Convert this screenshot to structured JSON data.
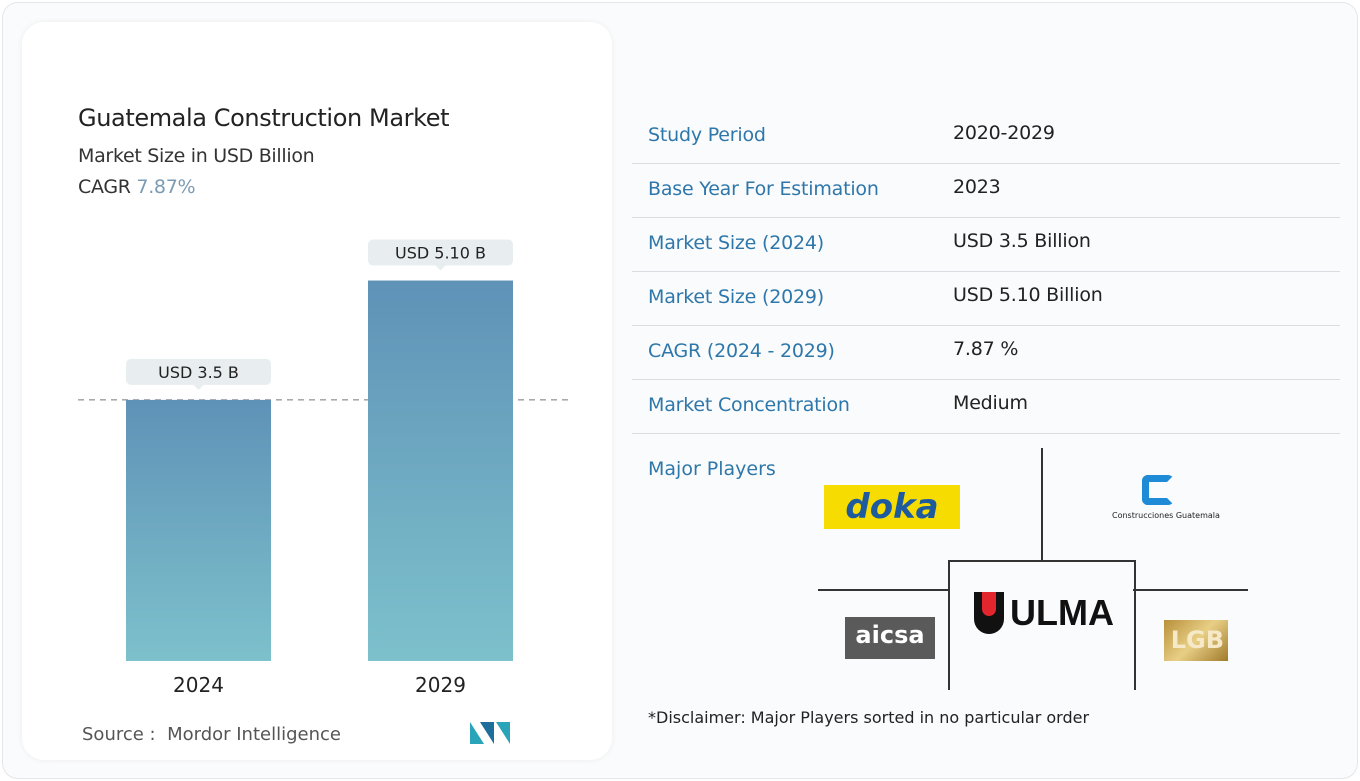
{
  "header": {
    "title": "Guatemala Construction Market",
    "subtitle": "Market Size in USD Billion",
    "cagr_label": "CAGR",
    "cagr_value": "7.87%"
  },
  "chart_data": {
    "type": "bar",
    "categories": [
      "2024",
      "2029"
    ],
    "values": [
      3.5,
      5.1
    ],
    "data_labels": [
      "USD 3.5 B",
      "USD 5.10 B"
    ],
    "title": "Guatemala Construction Market",
    "ylabel": "Market Size in USD Billion",
    "reference_line": 3.5,
    "colors": {
      "bar_top": "#5f92b7",
      "bar_bottom": "#7dc1cc"
    }
  },
  "source": {
    "label": "Source :",
    "value": "Mordor Intelligence"
  },
  "table": [
    {
      "key": "Study Period",
      "value": "2020-2029"
    },
    {
      "key": "Base Year For Estimation",
      "value": "2023"
    },
    {
      "key": "Market Size (2024)",
      "value": "USD 3.5 Billion"
    },
    {
      "key": "Market Size (2029)",
      "value": "USD 5.10 Billion"
    },
    {
      "key": "CAGR (2024 - 2029)",
      "value": "7.87 %"
    },
    {
      "key": "Market Concentration",
      "value": "Medium"
    }
  ],
  "players": {
    "label": "Major Players",
    "logos": [
      "doka",
      "Construcciones Guatemala",
      "ULMA",
      "aicsa",
      "LGB"
    ]
  },
  "disclaimer": "*Disclaimer: Major Players sorted in no particular order"
}
